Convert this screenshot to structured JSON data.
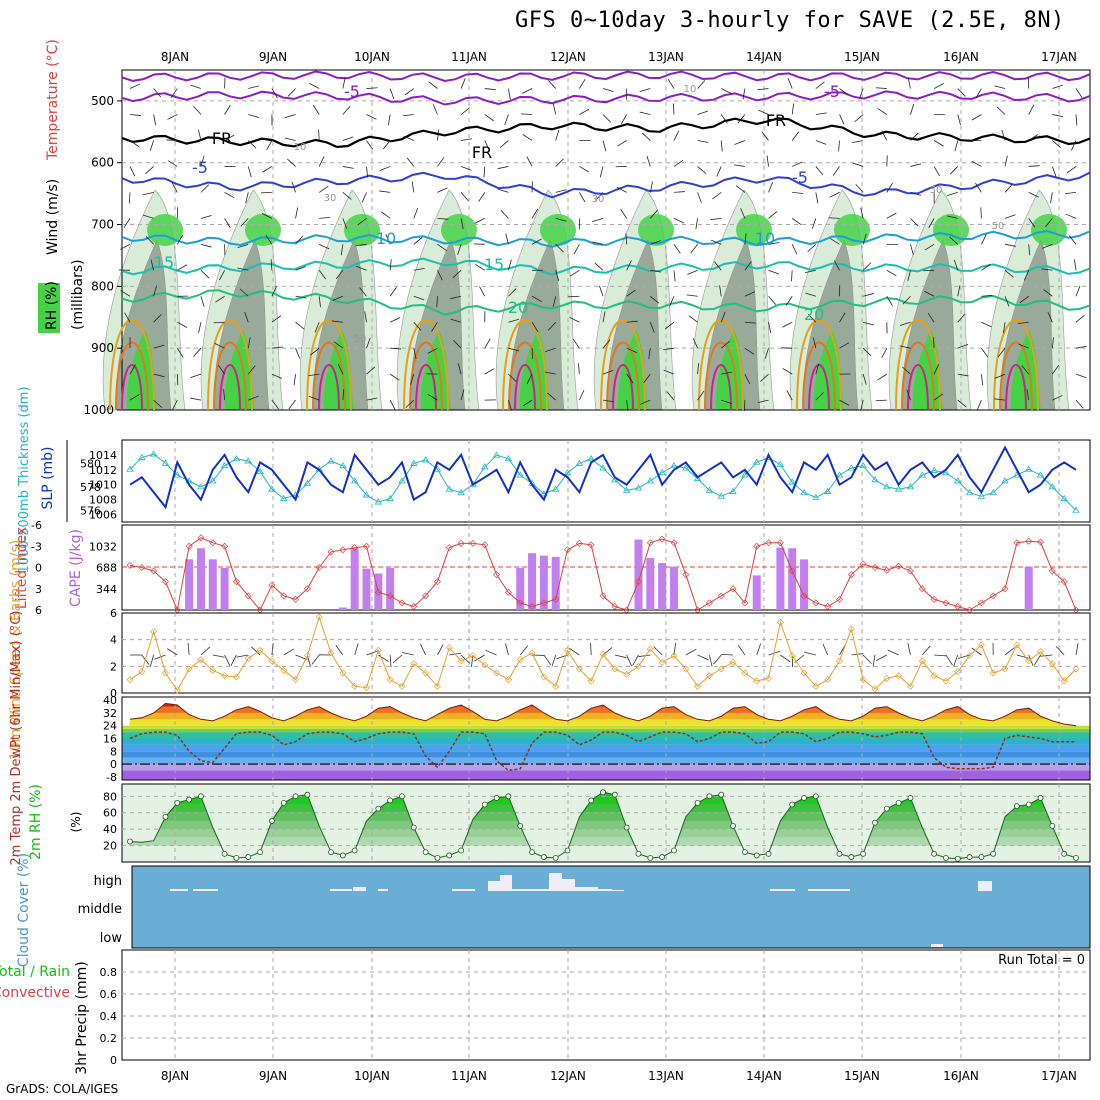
{
  "title": "GFS 0~10day 3-hourly for SAVE (2.5E, 8N)",
  "credit": "GrADS: COLA/IGES",
  "colors": {
    "rh_green": "#46d246",
    "rh_dark": "#9aaa9a",
    "rh_light": "#d8ecd8",
    "temp_purple": "#8c1cc8",
    "temp_blue": "#2a40d6",
    "temp_cyan": "#1aa0d8",
    "temp_teal": "#1abfb0",
    "temp_green": "#20c080",
    "temp_orange": "#e0a020",
    "temp_orange2": "#e07820",
    "temp_magenta": "#d0208c",
    "slp_blue": "#1030c8",
    "thick_cyan": "#20b8c0",
    "cape_bar": "#c080f0",
    "li_red": "#e04040",
    "wind_orange": "#e8a030",
    "rh2m_green": "#10c010",
    "cloud_blue": "#6aaed6"
  },
  "chart_data": {
    "type": "meteogram",
    "x_axis_top": [
      "8JAN",
      "9JAN",
      "10JAN",
      "11JAN",
      "12JAN",
      "13JAN",
      "14JAN",
      "15JAN",
      "16JAN",
      "17JAN"
    ],
    "x_axis_bottom": [
      "8JAN",
      "9JAN",
      "10JAN",
      "11JAN",
      "12JAN",
      "13JAN",
      "14JAN",
      "15JAN",
      "16JAN",
      "17JAN"
    ],
    "panels": {
      "upper_air": {
        "ylabel_wind": "Wind (m/s)",
        "ylabel_temp": "Temperature (°C)",
        "ylabel_rh": "RH (%)",
        "ylabel_units": "(millibars)",
        "ylim": [
          1000,
          450
        ],
        "ticks": [
          500,
          600,
          700,
          800,
          900,
          1000
        ],
        "contour_labels": [
          "-5",
          "-5",
          "FR",
          "FR",
          "FR",
          "-5",
          "-5",
          "10",
          "10",
          "15",
          "15",
          "20",
          "20",
          "10",
          "10",
          "30",
          "30",
          "50",
          "50",
          "50"
        ],
        "temp_levels": {
          "m5": [
            495,
            490,
            492,
            500,
            498,
            495,
            493,
            490,
            492,
            496
          ],
          "fr": [
            560,
            565,
            570,
            550,
            540,
            545,
            530,
            555,
            560,
            565
          ],
          "p5": [
            625,
            640,
            630,
            620,
            650,
            640,
            625,
            650,
            635,
            620
          ],
          "p10": [
            720,
            728,
            722,
            725,
            730,
            725,
            728,
            722,
            718,
            715
          ],
          "p15": [
            775,
            770,
            765,
            760,
            775,
            770,
            765,
            770,
            770,
            775
          ],
          "p20": [
            820,
            810,
            820,
            840,
            830,
            830,
            835,
            825,
            820,
            835
          ]
        }
      },
      "slp_thickness": {
        "ylabel_left": "1000-500mb Thickness (dm)",
        "ylabel_right": "SLP (mb)",
        "left_ticks": [
          "580",
          "578",
          "576"
        ],
        "right_ticks": [
          "1014",
          "1012",
          "1010",
          "1008",
          "1006"
        ],
        "slp_mb": [
          1010,
          1011,
          1009,
          1007,
          1013,
          1010,
          1008,
          1012,
          1014,
          1011,
          1009,
          1013,
          1012,
          1010,
          1008,
          1013,
          1012,
          1010,
          1009,
          1014,
          1012,
          1010,
          1011,
          1013,
          1008,
          1009,
          1013,
          1012,
          1014,
          1010,
          1011,
          1012,
          1009,
          1013,
          1010,
          1008,
          1012,
          1011,
          1009,
          1013,
          1014,
          1011,
          1010,
          1012,
          1014,
          1010,
          1012,
          1013,
          1011,
          1012,
          1013,
          1011,
          1012,
          1010,
          1014,
          1011,
          1009,
          1013,
          1012,
          1014,
          1010,
          1011,
          1014,
          1012,
          1013,
          1010,
          1012,
          1013,
          1011,
          1012,
          1014,
          1011,
          1009,
          1012,
          1015,
          1012,
          1009,
          1010,
          1012,
          1013,
          1012
        ],
        "thickness_dm": [
          579.5,
          580.5,
          580.8,
          580,
          579,
          578.5,
          578,
          578.5,
          579.8,
          580.4,
          580.2,
          579.3,
          577.8,
          577,
          577.3,
          578.3,
          579.5,
          580.2,
          579.8,
          578.5,
          577.3,
          576.7,
          577,
          578.5,
          580,
          580.3,
          579.5,
          577.8,
          577.5,
          578.2,
          579.7,
          580.7,
          580.4,
          579,
          578.3,
          577.4,
          577.8,
          579.2,
          580,
          580.4,
          579.6,
          578.6,
          577.7,
          577.9,
          578.5,
          579.2,
          579.8,
          579.6,
          578.7,
          577.7,
          577.2,
          577.6,
          579,
          580.1,
          580.5,
          579.9,
          578.4,
          577.5,
          577.1,
          577.6,
          579,
          579.6,
          579.8,
          578.6,
          578,
          577.8,
          578,
          579,
          579.4,
          579.2,
          578.5,
          577.5,
          577.2,
          577.5,
          578.5,
          579,
          579.5,
          579,
          578,
          577,
          576
        ]
      },
      "cape_li": {
        "ylabel_left": "Lifted Index",
        "ylabel_right": "CAPE (J/kg)",
        "li_ticks": [
          "-6",
          "-3",
          "0",
          "3",
          "6"
        ],
        "cape_ticks": [
          "1032",
          "688",
          "344"
        ],
        "cape_jkg": [
          0,
          0,
          0,
          0,
          0,
          820,
          1000,
          820,
          680,
          0,
          0,
          0,
          0,
          0,
          0,
          0,
          0,
          0,
          40,
          1000,
          670,
          590,
          680,
          0,
          0,
          0,
          0,
          0,
          0,
          0,
          0,
          0,
          0,
          680,
          920,
          880,
          860,
          0,
          0,
          0,
          0,
          0,
          0,
          1140,
          840,
          760,
          700,
          0,
          0,
          0,
          0,
          0,
          0,
          560,
          0,
          1010,
          1000,
          820,
          0,
          0,
          0,
          0,
          0,
          0,
          0,
          0,
          0,
          0,
          0,
          0,
          0,
          0,
          0,
          0,
          0,
          0,
          700,
          0,
          0,
          0,
          0
        ],
        "li": [
          -0.3,
          0,
          0.5,
          2,
          6,
          -3,
          -4.2,
          -3.5,
          -3,
          2,
          4,
          6,
          2.5,
          4,
          4.5,
          3,
          0,
          -2.2,
          -2.5,
          -2.8,
          -3,
          3.5,
          4,
          5,
          5.5,
          4,
          2,
          -2.8,
          -3.4,
          -3.4,
          -3.2,
          1,
          3.5,
          5,
          5.5,
          5,
          4.5,
          -2.5,
          -3.4,
          -3.2,
          4,
          5.5,
          6,
          2,
          -3.5,
          -4,
          -3.5,
          1,
          6,
          5,
          4,
          3,
          5,
          -3,
          -3.5,
          -3.5,
          0.5,
          4,
          5,
          5.5,
          4.5,
          1,
          -0.5,
          0,
          0.4,
          -0.2,
          0.5,
          3,
          4.5,
          5,
          5.5,
          6,
          5,
          4,
          3,
          -3.5,
          -3.7,
          -3.6,
          0.5,
          2,
          6
        ]
      },
      "wind10m": {
        "ylabel": "10m Wind Speed & Barbs (m/s)",
        "ticks": [
          "6",
          "4",
          "2",
          "0"
        ],
        "ylim": [
          0,
          6
        ],
        "speed": [
          1,
          1.6,
          4.6,
          1.5,
          0.2,
          1.8,
          2.5,
          1.7,
          1.3,
          1.2,
          2.6,
          3.2,
          2.4,
          1.7,
          1,
          2.8,
          5.7,
          3,
          1.5,
          0.5,
          0.4,
          3.2,
          1,
          0.5,
          2.2,
          1.5,
          0.5,
          3.4,
          2.4,
          2.8,
          2.1,
          1.5,
          1,
          2.5,
          3,
          1.2,
          0.5,
          3.2,
          1.8,
          0.9,
          2.9,
          1.8,
          1.4,
          2,
          3.3,
          2.3,
          2.8,
          1.8,
          0.5,
          1.3,
          1.8,
          2.3,
          1.5,
          0.9,
          1.1,
          5.3,
          2.8,
          1.5,
          0.5,
          1,
          2.4,
          4.8,
          1,
          0.3,
          1.1,
          1.3,
          0.5,
          2.4,
          1.3,
          0.9,
          1.6,
          2.8,
          3.6,
          1.5,
          1.8,
          3.6,
          2.4,
          3.1,
          2.2,
          0.9,
          1.8
        ]
      },
      "temp_dew": {
        "ylabel": "2m Temp 2m DewPt (6hr Min/Max) (°C)",
        "ticks": [
          "40",
          "32",
          "24",
          "16",
          "8",
          "0",
          "-8"
        ],
        "temp_c": [
          28,
          29,
          32,
          38,
          37,
          31,
          28,
          27,
          30,
          34,
          36,
          33,
          29,
          27,
          30,
          34,
          36,
          32,
          29,
          27,
          30,
          35,
          36,
          32,
          29,
          27,
          31,
          35,
          37,
          33,
          28,
          27,
          30,
          34,
          37,
          32,
          28,
          27,
          30,
          35,
          37,
          32,
          29,
          27,
          30,
          35,
          36,
          31,
          28,
          27,
          30,
          35,
          36,
          31,
          28,
          27,
          30,
          34,
          36,
          31,
          28,
          27,
          30,
          35,
          36,
          32,
          29,
          27,
          30,
          34,
          36,
          31,
          28,
          27,
          30,
          34,
          35,
          30,
          27,
          25,
          24
        ],
        "dew_c": [
          16,
          19,
          20,
          20,
          18,
          8,
          2,
          1,
          10,
          19,
          20,
          20,
          18,
          12,
          14,
          19,
          20,
          20,
          19,
          14,
          16,
          19,
          20,
          20,
          19,
          5,
          -2,
          8,
          20,
          20,
          19,
          2,
          -4,
          -3,
          13,
          20,
          20,
          18,
          12,
          15,
          20,
          20,
          18,
          14,
          17,
          20,
          20,
          19,
          14,
          16,
          20,
          20,
          19,
          13,
          14,
          20,
          20,
          19,
          14,
          16,
          20,
          20,
          19,
          17,
          18,
          20,
          20,
          19,
          4,
          -2,
          -3,
          -3,
          -3,
          -2,
          16,
          18,
          17,
          16,
          14,
          14,
          14
        ]
      },
      "rh2m": {
        "ylabel": "2m RH (%)",
        "ticks": [
          "80",
          "60",
          "40",
          "20"
        ],
        "rh_pct": [
          25,
          24,
          26,
          55,
          72,
          76,
          80,
          42,
          10,
          5,
          6,
          12,
          50,
          72,
          80,
          82,
          44,
          12,
          8,
          14,
          50,
          65,
          75,
          80,
          42,
          12,
          5,
          8,
          14,
          52,
          70,
          78,
          80,
          44,
          12,
          6,
          5,
          14,
          55,
          75,
          85,
          82,
          42,
          10,
          5,
          6,
          14,
          55,
          72,
          80,
          82,
          44,
          12,
          8,
          10,
          50,
          70,
          78,
          80,
          42,
          10,
          6,
          10,
          48,
          65,
          72,
          78,
          42,
          10,
          5,
          4,
          6,
          6,
          10,
          55,
          68,
          70,
          78,
          44,
          10,
          5
        ]
      },
      "cloud": {
        "ylabel": "Cloud Cover (%)",
        "levels": [
          "high",
          "middle",
          "low"
        ]
      },
      "precip": {
        "ylabel_total": "Total / Rain",
        "ylabel_conv": "Convective",
        "ylabel_units": "3hr Precip (mm)",
        "ticks": [
          "0.8",
          "0.6",
          "0.4",
          "0.2",
          "0"
        ],
        "ylim": [
          0,
          1
        ],
        "run_total": "Run Total = 0",
        "values": [
          0,
          0,
          0,
          0,
          0,
          0,
          0,
          0,
          0,
          0
        ]
      }
    }
  }
}
